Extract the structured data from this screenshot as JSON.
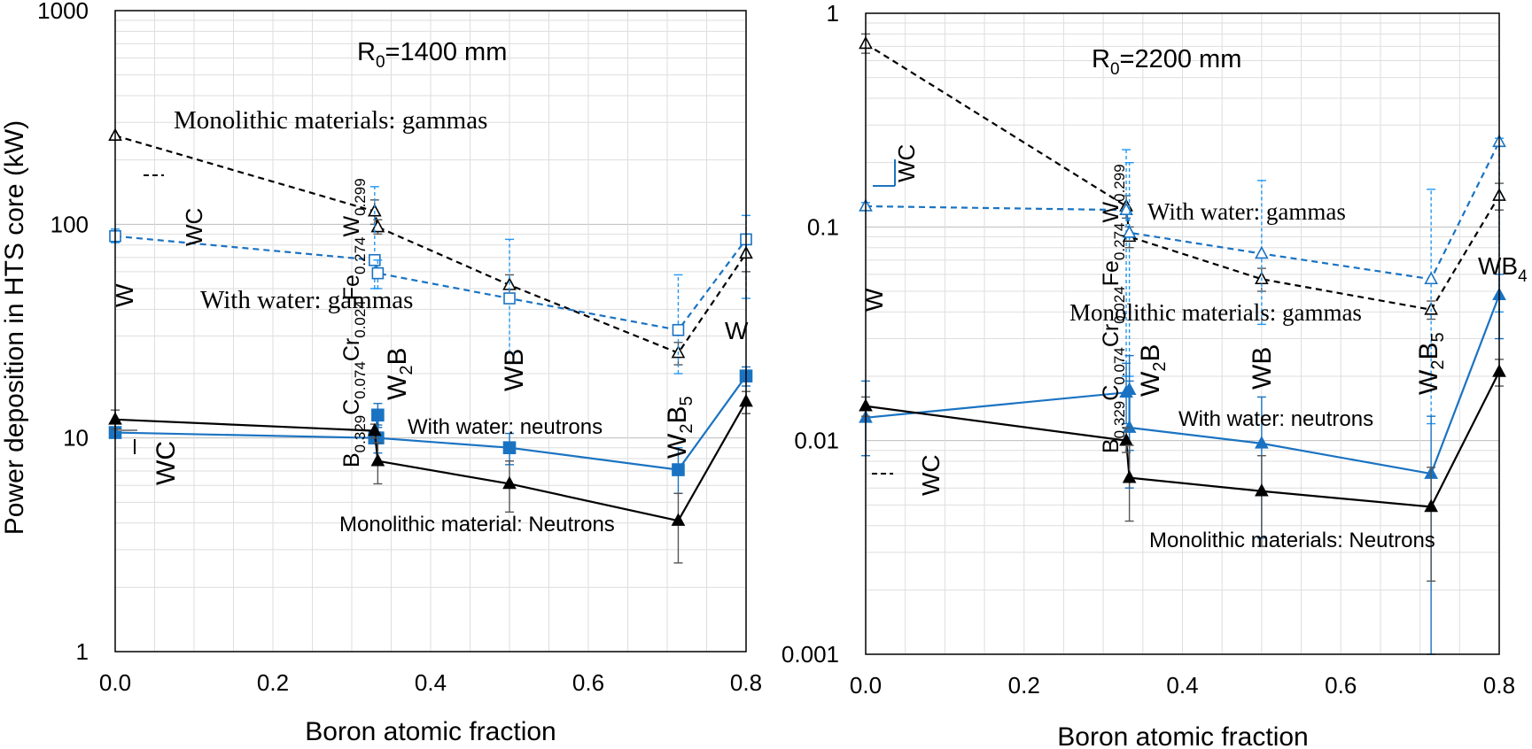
{
  "colors": {
    "monolithic": "#000000",
    "water": "#1a73c2",
    "water_light": "#4a90d9",
    "errorbar_water": "#2196f3",
    "grid": "#d0d0d0"
  },
  "chart_data": [
    {
      "type": "line",
      "yscale": "log",
      "title": "R0=1400 mm",
      "title_main": "R",
      "title_sub": "0",
      "title_rest": "=1400 mm",
      "xlabel": "Boron atomic fraction",
      "ylabel": "Power deposition in HTS core (kW)",
      "xlim": [
        0.0,
        0.8
      ],
      "ylim": [
        1,
        1000
      ],
      "x_ticks": [
        "0.0",
        "0.2",
        "0.4",
        "0.6",
        "0.8"
      ],
      "x_tick_values": [
        0.0,
        0.2,
        0.4,
        0.6,
        0.8
      ],
      "y_ticks": [
        "1",
        "10",
        "100",
        "1000"
      ],
      "y_tick_values": [
        1,
        10,
        100,
        1000
      ],
      "grid": true,
      "series": [
        {
          "name": "Monolithic materials: gammas",
          "style": "dashed",
          "marker": "triangle-open",
          "color": "#000000",
          "points": [
            {
              "x": 0.0,
              "y": 260,
              "lo": 260,
              "hi": 260
            },
            {
              "x": 0.329,
              "y": 115,
              "lo": 100,
              "hi": 130
            },
            {
              "x": 0.333,
              "y": 97,
              "lo": 90,
              "hi": 105
            },
            {
              "x": 0.5,
              "y": 52,
              "lo": 45,
              "hi": 58
            },
            {
              "x": 0.714,
              "y": 25,
              "lo": 22,
              "hi": 28
            },
            {
              "x": 0.8,
              "y": 73,
              "lo": 60,
              "hi": 85
            }
          ]
        },
        {
          "name": "With water: gammas",
          "style": "dashed",
          "marker": "square-open",
          "color": "#1a73c2",
          "points": [
            {
              "x": 0.0,
              "y": 88,
              "lo": 82,
              "hi": 95
            },
            {
              "x": 0.329,
              "y": 68,
              "lo": 50,
              "hi": 150
            },
            {
              "x": 0.333,
              "y": 59,
              "lo": 50,
              "hi": 68
            },
            {
              "x": 0.5,
              "y": 45,
              "lo": 25,
              "hi": 85
            },
            {
              "x": 0.714,
              "y": 32,
              "lo": 20,
              "hi": 58
            },
            {
              "x": 0.8,
              "y": 85,
              "lo": 45,
              "hi": 110
            }
          ]
        },
        {
          "name": "With water: neutrons",
          "style": "solid",
          "marker": "square-filled",
          "color": "#1a73c2",
          "points": [
            {
              "x": 0.0,
              "y": 10.6,
              "lo": 10.1,
              "hi": 11.1
            },
            {
              "x": 0.329,
              "y": 10.0,
              "lo": 9.5,
              "hi": 10.5
            },
            {
              "x": 0.333,
              "y": 12.8,
              "lo": 11.2,
              "hi": 14.5
            },
            {
              "x": 0.333,
              "y": 10.0,
              "lo": 8.5,
              "hi": 11.5
            },
            {
              "x": 0.5,
              "y": 9.0,
              "lo": 7.5,
              "hi": 10.5
            },
            {
              "x": 0.714,
              "y": 7.1,
              "lo": 5.5,
              "hi": 9.0
            },
            {
              "x": 0.8,
              "y": 19.5,
              "lo": 17.5,
              "hi": 21.5
            }
          ]
        },
        {
          "name": "Monolithic material: Neutrons",
          "style": "solid",
          "marker": "triangle-filled",
          "color": "#000000",
          "points": [
            {
              "x": 0.0,
              "y": 12.2,
              "lo": 11.0,
              "hi": 13.5
            },
            {
              "x": 0.329,
              "y": 10.8,
              "lo": 10.0,
              "hi": 11.6
            },
            {
              "x": 0.333,
              "y": 7.8,
              "lo": 6.1,
              "hi": 9.5
            },
            {
              "x": 0.5,
              "y": 6.1,
              "lo": 4.5,
              "hi": 7.8
            },
            {
              "x": 0.714,
              "y": 4.1,
              "lo": 2.6,
              "hi": 5.5
            },
            {
              "x": 0.8,
              "y": 14.8,
              "lo": 13.0,
              "hi": 16.5
            }
          ]
        }
      ],
      "annotations": {
        "mono_gamma": "Monolithic materials: gammas",
        "water_gamma": "With water: gammas",
        "water_neutron": "With water: neutrons",
        "mono_neutron": "Monolithic material: Neutrons",
        "mat_wc_top": "WC",
        "mat_w": "W",
        "mat_wc_bottom": "WC",
        "mat_w2b": "W",
        "mat_w2b_sub": "2",
        "mat_w2b_rest": "B",
        "mat_wb": "WB",
        "mat_w2b5": "W",
        "mat_w2b5_sub1": "2",
        "mat_w2b5_mid": "B",
        "mat_w2b5_sub2": "5",
        "mat_wb4_partial": "W",
        "alloy_parts": [
          "B",
          "0.329",
          "C",
          "0.074",
          "Cr",
          "0.024",
          "Fe",
          "0.274",
          "W",
          "0.299"
        ]
      }
    },
    {
      "type": "line",
      "yscale": "log",
      "title": "R0=2200 mm",
      "title_main": "R",
      "title_sub": "0",
      "title_rest": "=2200 mm",
      "xlabel": "Boron atomic fraction",
      "ylabel": "",
      "xlim": [
        0.0,
        0.8
      ],
      "ylim": [
        0.001,
        1
      ],
      "x_ticks": [
        "0.0",
        "0.2",
        "0.4",
        "0.6",
        "0.8"
      ],
      "x_tick_values": [
        0.0,
        0.2,
        0.4,
        0.6,
        0.8
      ],
      "y_ticks": [
        "0.001",
        "0.01",
        "0.1",
        "1"
      ],
      "y_tick_values": [
        0.001,
        0.01,
        0.1,
        1
      ],
      "grid": true,
      "series": [
        {
          "name": "Monolithic materials: gammas",
          "style": "dashed",
          "marker": "triangle-open",
          "color": "#000000",
          "points": [
            {
              "x": 0.0,
              "y": 0.72,
              "lo": 0.65,
              "hi": 0.8
            },
            {
              "x": 0.329,
              "y": 0.125,
              "lo": 0.11,
              "hi": 0.14
            },
            {
              "x": 0.333,
              "y": 0.09,
              "lo": 0.08,
              "hi": 0.1
            },
            {
              "x": 0.5,
              "y": 0.057,
              "lo": 0.05,
              "hi": 0.064
            },
            {
              "x": 0.714,
              "y": 0.041,
              "lo": 0.037,
              "hi": 0.045
            },
            {
              "x": 0.8,
              "y": 0.14,
              "lo": 0.12,
              "hi": 0.16
            }
          ]
        },
        {
          "name": "With water: gammas",
          "style": "dashed",
          "marker": "triangle-open",
          "color": "#1a73c2",
          "points": [
            {
              "x": 0.0,
              "y": 0.125,
              "lo": 0.12,
              "hi": 0.13
            },
            {
              "x": 0.329,
              "y": 0.12,
              "lo": 0.02,
              "hi": 0.23
            },
            {
              "x": 0.333,
              "y": 0.094,
              "lo": 0.02,
              "hi": 0.2
            },
            {
              "x": 0.5,
              "y": 0.075,
              "lo": 0.035,
              "hi": 0.165
            },
            {
              "x": 0.714,
              "y": 0.057,
              "lo": 0.012,
              "hi": 0.15
            },
            {
              "x": 0.8,
              "y": 0.25,
              "lo": 0.04,
              "hi": 0.26
            }
          ]
        },
        {
          "name": "With water: neutrons",
          "style": "solid",
          "marker": "triangle-filled",
          "color": "#1a73c2",
          "points": [
            {
              "x": 0.0,
              "y": 0.0128,
              "lo": 0.0085,
              "hi": 0.019
            },
            {
              "x": 0.329,
              "y": 0.0168,
              "lo": 0.012,
              "hi": 0.023
            },
            {
              "x": 0.333,
              "y": 0.0173,
              "lo": 0.009,
              "hi": 0.025
            },
            {
              "x": 0.333,
              "y": 0.0115,
              "lo": 0.006,
              "hi": 0.019
            },
            {
              "x": 0.5,
              "y": 0.0097,
              "lo": 0.0035,
              "hi": 0.016
            },
            {
              "x": 0.714,
              "y": 0.007,
              "lo": 0.001,
              "hi": 0.013
            },
            {
              "x": 0.8,
              "y": 0.048,
              "lo": 0.03,
              "hi": 0.06
            }
          ]
        },
        {
          "name": "Monolithic materials: Neutrons",
          "style": "solid",
          "marker": "triangle-filled",
          "color": "#000000",
          "points": [
            {
              "x": 0.0,
              "y": 0.0145,
              "lo": 0.013,
              "hi": 0.016
            },
            {
              "x": 0.329,
              "y": 0.01,
              "lo": 0.0088,
              "hi": 0.0115
            },
            {
              "x": 0.333,
              "y": 0.0067,
              "lo": 0.0042,
              "hi": 0.0095
            },
            {
              "x": 0.5,
              "y": 0.0058,
              "lo": 0.0032,
              "hi": 0.0085
            },
            {
              "x": 0.714,
              "y": 0.0049,
              "lo": 0.0022,
              "hi": 0.0075
            },
            {
              "x": 0.8,
              "y": 0.021,
              "lo": 0.018,
              "hi": 0.024
            }
          ]
        }
      ],
      "annotations": {
        "mono_gamma": "Monolithic materials: gammas",
        "water_gamma": "With water: gammas",
        "water_neutron": "With water: neutrons",
        "mono_neutron": "Monolithic materials: Neutrons",
        "mat_wc_top": "WC",
        "mat_w": "W",
        "mat_wc_bottom": "WC",
        "mat_w2b": "W",
        "mat_w2b_sub": "2",
        "mat_w2b_rest": "B",
        "mat_wb": "WB",
        "mat_w2b5": "W",
        "mat_w2b5_sub1": "2",
        "mat_w2b5_mid": "B",
        "mat_w2b5_sub2": "5",
        "mat_wb4": "WB",
        "mat_wb4_sub": "4",
        "alloy_parts": [
          "B",
          "0.329",
          "C",
          "0.074",
          "Cr",
          "0.024",
          "Fe",
          "0.274",
          "W",
          "0.299"
        ]
      }
    }
  ]
}
